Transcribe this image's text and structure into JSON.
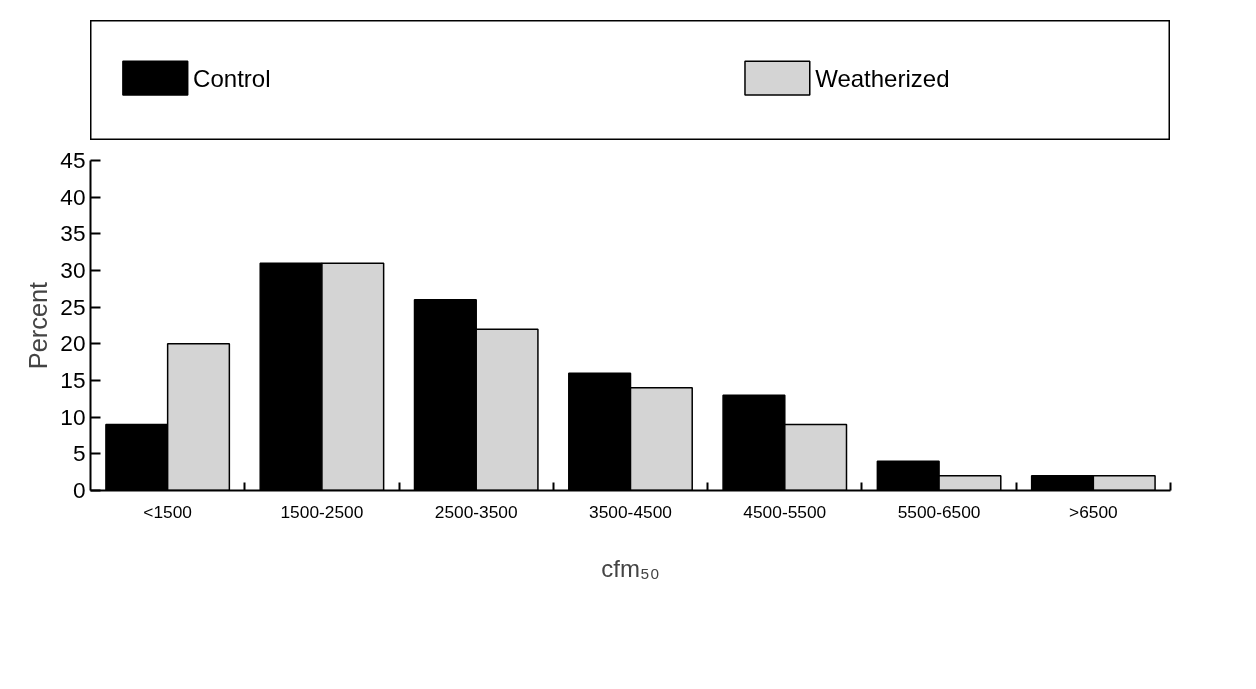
{
  "chart_data": {
    "type": "bar",
    "xlabel": "cfm₅₀",
    "ylabel": "Percent",
    "categories": [
      "<1500",
      "1500-2500",
      "2500-3500",
      "3500-4500",
      "4500-5500",
      "5500-6500",
      ">6500"
    ],
    "series": [
      {
        "name": "Control",
        "color": "#000000",
        "values": [
          9,
          31,
          26,
          16,
          13,
          4,
          2
        ]
      },
      {
        "name": "Weatherized",
        "color": "#d4d4d4",
        "values": [
          20,
          31,
          22,
          14,
          9,
          2,
          2
        ]
      }
    ],
    "ylim": [
      0,
      45
    ],
    "yticks": [
      0,
      5,
      10,
      15,
      20,
      25,
      30,
      35,
      40,
      45
    ],
    "grid": false,
    "legend": "top"
  }
}
